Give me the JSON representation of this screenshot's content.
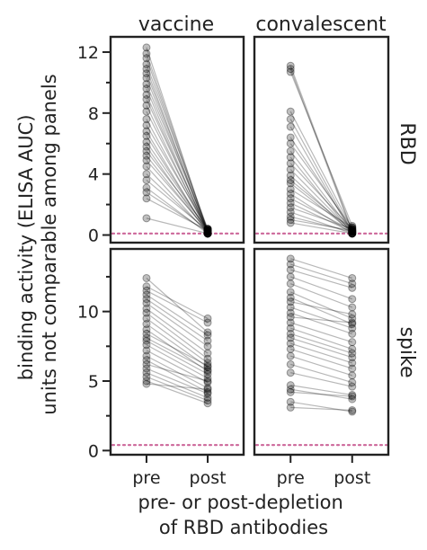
{
  "chart_data": {
    "type": "line",
    "layout": "facet-grid",
    "column_titles": [
      "vaccine",
      "convalescent"
    ],
    "row_titles": [
      "RBD",
      "spike"
    ],
    "xlabel": "pre- or post-depletion\nof RBD antibodies",
    "ylabel": "binding activity (ELISA AUC)\nunits not comparable among panels",
    "x_categories": [
      "pre",
      "post"
    ],
    "limit_of_detection_line": {
      "style": "dotted",
      "color": "#cc6699"
    },
    "marker_color": "#000000",
    "rows": [
      {
        "name": "RBD",
        "ylim": [
          -0.5,
          13
        ],
        "yticks": [
          0,
          4,
          8,
          12
        ],
        "limit_of_detection": 0.1,
        "panels": [
          {
            "name": "vaccine",
            "pairs": [
              [
                12.3,
                0.2
              ],
              [
                11.9,
                0.3
              ],
              [
                11.6,
                0.2
              ],
              [
                11.2,
                0.4
              ],
              [
                10.9,
                0.1
              ],
              [
                10.6,
                0.3
              ],
              [
                10.3,
                0.2
              ],
              [
                9.9,
                0.4
              ],
              [
                9.6,
                0.1
              ],
              [
                9.2,
                0.2
              ],
              [
                8.9,
                0.3
              ],
              [
                8.5,
                0.1
              ],
              [
                8.1,
                0.3
              ],
              [
                7.6,
                0.2
              ],
              [
                7.2,
                0.4
              ],
              [
                6.8,
                0.1
              ],
              [
                6.5,
                0.2
              ],
              [
                6.1,
                0.3
              ],
              [
                5.8,
                0.1
              ],
              [
                5.5,
                0.4
              ],
              [
                5.2,
                0.2
              ],
              [
                4.9,
                0.3
              ],
              [
                4.5,
                0.1
              ],
              [
                4.0,
                0.2
              ],
              [
                3.6,
                0.3
              ],
              [
                3.1,
                0.1
              ],
              [
                2.8,
                0.2
              ],
              [
                2.4,
                0.3
              ],
              [
                1.1,
                0.1
              ]
            ]
          },
          {
            "name": "convalescent",
            "pairs": [
              [
                11.1,
                0.3
              ],
              [
                10.9,
                0.2
              ],
              [
                10.7,
                0.6
              ],
              [
                8.1,
                0.4
              ],
              [
                7.6,
                0.2
              ],
              [
                7.1,
                0.1
              ],
              [
                6.4,
                0.3
              ],
              [
                6.0,
                0.5
              ],
              [
                5.5,
                0.2
              ],
              [
                5.1,
                0.1
              ],
              [
                4.7,
                0.4
              ],
              [
                4.3,
                0.2
              ],
              [
                3.9,
                0.1
              ],
              [
                3.6,
                0.3
              ],
              [
                3.4,
                0.2
              ],
              [
                3.0,
                0.5
              ],
              [
                2.7,
                0.1
              ],
              [
                2.4,
                0.3
              ],
              [
                2.1,
                0.2
              ],
              [
                1.8,
                0.4
              ],
              [
                1.5,
                0.1
              ],
              [
                1.2,
                0.2
              ],
              [
                1.0,
                0.3
              ],
              [
                0.8,
                0.1
              ]
            ]
          }
        ]
      },
      {
        "name": "spike",
        "ylim": [
          -0.3,
          14.5
        ],
        "yticks": [
          0,
          5,
          10
        ],
        "limit_of_detection": 0.4,
        "panels": [
          {
            "name": "vaccine",
            "pairs": [
              [
                12.4,
                8.5
              ],
              [
                11.8,
                9.5
              ],
              [
                11.5,
                9.2
              ],
              [
                11.2,
                8.3
              ],
              [
                10.9,
                7.9
              ],
              [
                10.6,
                7.5
              ],
              [
                10.2,
                7.0
              ],
              [
                9.9,
                6.6
              ],
              [
                9.5,
                6.3
              ],
              [
                9.1,
                6.0
              ],
              [
                8.7,
                5.7
              ],
              [
                8.4,
                6.1
              ],
              [
                8.1,
                5.8
              ],
              [
                7.9,
                5.5
              ],
              [
                7.6,
                5.2
              ],
              [
                7.2,
                4.9
              ],
              [
                6.8,
                4.5
              ],
              [
                6.5,
                4.2
              ],
              [
                6.2,
                5.0
              ],
              [
                5.9,
                4.1
              ],
              [
                5.6,
                3.8
              ],
              [
                5.3,
                3.6
              ],
              [
                5.0,
                3.4
              ],
              [
                4.8,
                4.4
              ]
            ]
          },
          {
            "name": "convalescent",
            "pairs": [
              [
                13.8,
                12.4
              ],
              [
                13.4,
                12.0
              ],
              [
                13.0,
                11.7
              ],
              [
                12.5,
                10.9
              ],
              [
                12.0,
                10.3
              ],
              [
                11.4,
                9.5
              ],
              [
                11.0,
                9.1
              ],
              [
                10.7,
                9.8
              ],
              [
                10.3,
                8.8
              ],
              [
                9.9,
                8.4
              ],
              [
                9.6,
                9.2
              ],
              [
                9.2,
                7.8
              ],
              [
                8.8,
                7.3
              ],
              [
                8.4,
                7.0
              ],
              [
                8.1,
                6.7
              ],
              [
                7.7,
                6.3
              ],
              [
                7.3,
                5.9
              ],
              [
                6.8,
                5.4
              ],
              [
                6.2,
                4.9
              ],
              [
                5.6,
                4.6
              ],
              [
                4.7,
                4.0
              ],
              [
                4.4,
                3.7
              ],
              [
                4.2,
                3.9
              ],
              [
                3.5,
                2.8
              ],
              [
                3.1,
                2.9
              ]
            ]
          }
        ]
      }
    ]
  }
}
